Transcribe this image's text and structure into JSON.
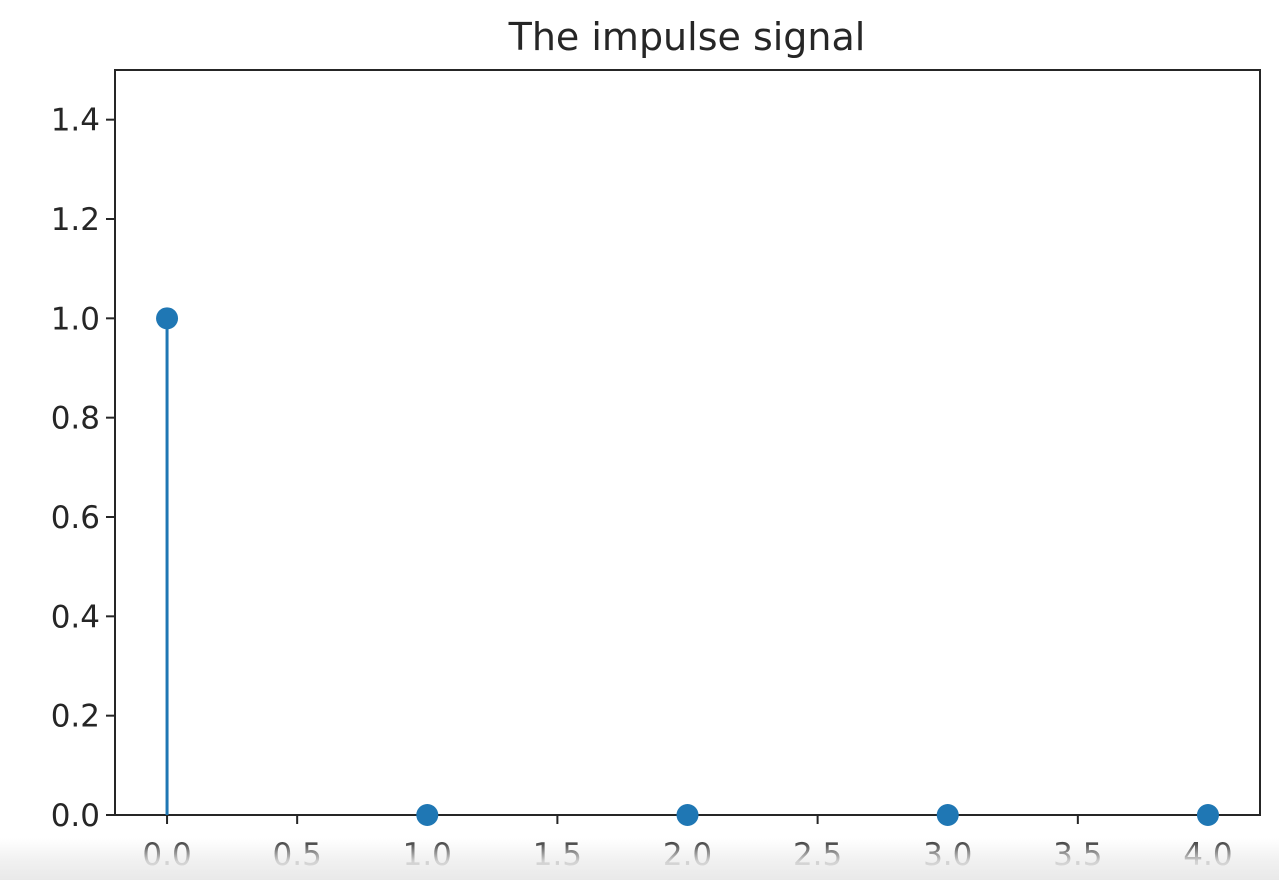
{
  "chart_data": {
    "type": "stem",
    "title": "The impulse signal",
    "xlabel": "",
    "ylabel": "",
    "x": [
      0,
      1,
      2,
      3,
      4
    ],
    "y": [
      1,
      0,
      0,
      0,
      0
    ],
    "xlim": [
      -0.2,
      4.2
    ],
    "ylim": [
      0,
      1.5
    ],
    "xticks": [
      0.0,
      0.5,
      1.0,
      1.5,
      2.0,
      2.5,
      3.0,
      3.5,
      4.0
    ],
    "xtick_labels": [
      "0.0",
      "0.5",
      "1.0",
      "1.5",
      "2.0",
      "2.5",
      "3.0",
      "3.5",
      "4.0"
    ],
    "yticks": [
      0.0,
      0.2,
      0.4,
      0.6,
      0.8,
      1.0,
      1.2,
      1.4
    ],
    "ytick_labels": [
      "0.0",
      "0.2",
      "0.4",
      "0.6",
      "0.8",
      "1.0",
      "1.2",
      "1.4"
    ],
    "grid": false,
    "legend": "none",
    "colors": {
      "series": "#1f77b4",
      "axes": "#262626",
      "background": "#ffffff"
    }
  }
}
